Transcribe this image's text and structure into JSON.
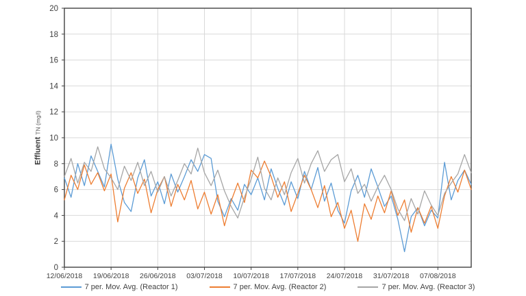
{
  "page": {
    "background": "#ffffff"
  },
  "chart_data": {
    "type": "line",
    "title": "",
    "ylabel_bold": "Effluent",
    "ylabel_rest": "TN (mg/l)",
    "ylim": [
      0,
      20
    ],
    "ytick_step": 2,
    "x_tick_labels": [
      "12/06/2018",
      "19/06/2018",
      "26/06/2018",
      "03/07/2018",
      "10/07/2018",
      "17/07/2018",
      "24/07/2018",
      "31/07/2018",
      "07/08/2018"
    ],
    "x_days_per_tick": 7,
    "x_total_days": 61,
    "grid": true,
    "legend_position": "bottom",
    "colors": {
      "gridline": "#d9d9d9",
      "axis": "#404040",
      "tick_label": "#404040"
    },
    "series": [
      {
        "name": "7 per. Mov. Avg. (Reactor 1)",
        "color": "#5b9bd5",
        "values": [
          6.9,
          5.4,
          8.0,
          6.3,
          8.6,
          7.4,
          6.2,
          9.5,
          6.8,
          5.0,
          4.3,
          6.9,
          8.3,
          5.5,
          6.6,
          4.9,
          7.2,
          5.8,
          7.0,
          8.3,
          7.4,
          8.7,
          8.4,
          5.1,
          3.9,
          5.3,
          4.4,
          6.4,
          5.6,
          6.9,
          5.2,
          7.6,
          6.1,
          4.8,
          6.6,
          5.3,
          7.4,
          6.0,
          7.7,
          5.1,
          6.5,
          4.4,
          3.4,
          5.9,
          7.1,
          5.4,
          7.6,
          6.2,
          4.7,
          5.5,
          3.7,
          1.2,
          3.9,
          4.6,
          3.2,
          4.4,
          3.8,
          8.1,
          5.2,
          6.7,
          7.5,
          6.4
        ]
      },
      {
        "name": "7 per. Mov. Avg. (Reactor 2)",
        "color": "#ed7d31",
        "values": [
          5.2,
          7.1,
          6.0,
          7.9,
          6.4,
          7.3,
          5.9,
          7.2,
          3.5,
          6.1,
          7.3,
          5.7,
          6.8,
          4.2,
          6.0,
          7.0,
          4.7,
          6.4,
          5.2,
          6.7,
          4.5,
          5.8,
          4.1,
          5.6,
          3.2,
          5.1,
          6.5,
          5.0,
          7.5,
          6.9,
          8.2,
          7.0,
          5.4,
          6.6,
          4.3,
          5.7,
          7.1,
          6.0,
          4.6,
          6.3,
          3.9,
          5.0,
          3.0,
          4.4,
          2.0,
          4.9,
          3.7,
          5.5,
          4.2,
          5.9,
          4.0,
          5.2,
          2.7,
          4.6,
          3.4,
          4.7,
          3.0,
          5.5,
          7.0,
          5.8,
          7.5,
          6.0
        ]
      },
      {
        "name": "7 per. Mov. Avg. (Reactor 3)",
        "color": "#a5a5a5",
        "values": [
          7.0,
          8.4,
          6.5,
          8.1,
          7.4,
          9.3,
          7.6,
          6.9,
          6.0,
          7.8,
          6.7,
          8.1,
          6.3,
          7.4,
          5.8,
          7.0,
          5.5,
          6.7,
          8.0,
          7.2,
          9.2,
          7.3,
          6.3,
          7.5,
          5.9,
          4.7,
          3.8,
          5.4,
          6.8,
          8.5,
          6.1,
          5.2,
          6.9,
          5.6,
          7.3,
          8.4,
          6.5,
          8.0,
          9.0,
          7.4,
          8.3,
          8.7,
          6.6,
          7.6,
          5.7,
          6.4,
          5.1,
          6.2,
          7.1,
          6.0,
          4.5,
          3.6,
          5.3,
          4.1,
          5.9,
          4.8,
          4.0,
          5.7,
          6.5,
          7.2,
          8.7,
          7.3
        ]
      }
    ]
  }
}
